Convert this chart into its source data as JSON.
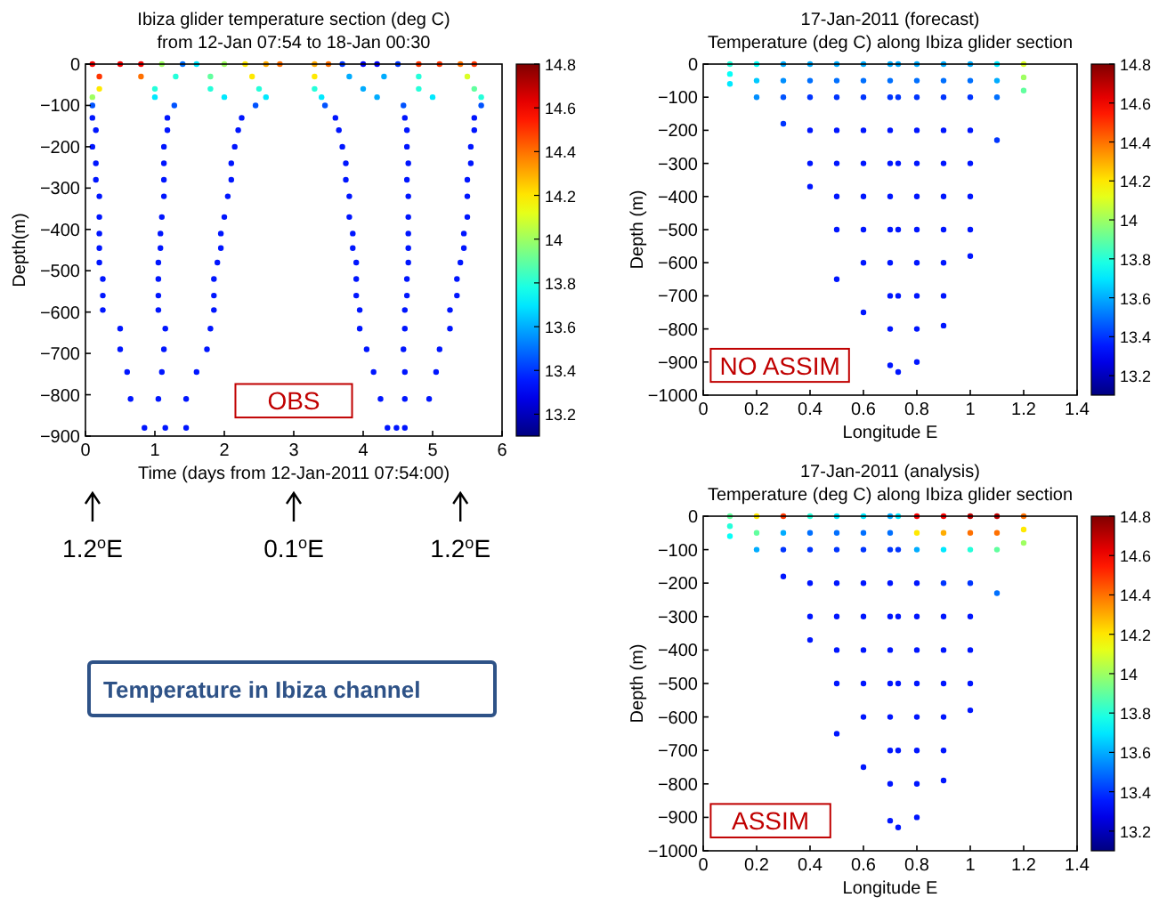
{
  "chart_data": [
    {
      "type": "scatter",
      "title": "Ibiza glider temperature section (deg C)",
      "subtitle": "from 12-Jan 07:54 to 18-Jan 00:30",
      "xlabel": "Time (days from 12-Jan-2011 07:54:00)",
      "ylabel": "Depth(m)",
      "xlim": [
        0,
        6
      ],
      "xticks": [
        0,
        1,
        2,
        3,
        4,
        5,
        6
      ],
      "ylim": [
        -900,
        0
      ],
      "yticks": [
        -900,
        -800,
        -700,
        -600,
        -500,
        -400,
        -300,
        -200,
        -100,
        0
      ],
      "clim": [
        13.1,
        14.8
      ],
      "cticks": [
        13.2,
        13.4,
        13.6,
        13.8,
        14,
        14.2,
        14.4,
        14.6,
        14.8
      ],
      "annotations": [
        "OBS",
        "1.2$^{o}$E",
        "0.1$^{o}$E",
        "1.2$^{o}$E",
        "Temperature in Ibiza channel"
      ],
      "series": [
        {
          "x": [
            0.1,
            0.5,
            0.8,
            1.1,
            1.4,
            1.6,
            2.0,
            2.3,
            2.6,
            2.8,
            3.3,
            3.5,
            3.7,
            4.0,
            4.2,
            4.5,
            4.8,
            5.1,
            5.4,
            5.6
          ],
          "values": [
            0,
            0,
            0,
            0,
            0,
            0,
            0,
            0,
            0,
            0,
            0,
            0,
            0,
            0,
            0,
            0,
            0,
            0,
            0,
            0
          ],
          "colors": [
            "#f80000",
            "#f80000",
            "#f80000",
            "#9eff61",
            "#0070ff",
            "#00e9ff",
            "#9eff61",
            "#ffe900",
            "#ffac00",
            "#ff7000",
            "#ffac00",
            "#ff7000",
            "#0035ff",
            "#0000f8",
            "#0000f8",
            "#0035ff",
            "#ff3500",
            "#ff3500",
            "#ff7000",
            "#ff3500"
          ]
        },
        {
          "x": [
            0.2,
            0.8,
            1.3,
            1.8,
            2.4,
            3.3,
            3.8,
            4.3,
            4.8,
            5.5
          ],
          "values": [
            -30,
            -30,
            -30,
            -30,
            -30,
            -30,
            -30,
            -30,
            -30,
            -30
          ],
          "colors": [
            "#ff3500",
            "#ff7000",
            "#25ffda",
            "#61ff9e",
            "#ffe900",
            "#ffe900",
            "#00acff",
            "#00acff",
            "#25ffda",
            "#daff25"
          ]
        },
        {
          "x": [
            0.2,
            1.0,
            1.8,
            2.5,
            3.3,
            4.0,
            4.8,
            5.6
          ],
          "values": [
            -60,
            -60,
            -60,
            -60,
            -60,
            -60,
            -60,
            -60
          ],
          "colors": [
            "#ffe900",
            "#25ffda",
            "#25ffda",
            "#25ffda",
            "#25ffda",
            "#00acff",
            "#25ffda",
            "#61ff9e"
          ]
        },
        {
          "x": [
            0.1,
            1.0,
            2.0,
            2.6,
            3.4,
            4.2,
            5.0,
            5.7
          ],
          "values": [
            -80,
            -80,
            -80,
            -80,
            -80,
            -80,
            -80,
            -80
          ],
          "colors": [
            "#9eff61",
            "#00e9ff",
            "#00e9ff",
            "#00e9ff",
            "#00e9ff",
            "#00acff",
            "#00e9ff",
            "#25ffda"
          ]
        },
        {
          "x": [
            0.1,
            1.28,
            2.45,
            3.45,
            4.58,
            5.7
          ],
          "values": [
            -100,
            -100,
            -100,
            -100,
            -100,
            -100
          ],
          "color": "#0053ff"
        },
        {
          "x": [
            0.1,
            1.18,
            2.25,
            3.6,
            4.6,
            5.6
          ],
          "values": [
            -130,
            -130,
            -130,
            -130,
            -130,
            -130
          ],
          "color": "#0016ff"
        },
        {
          "x": [
            0.15,
            1.18,
            2.2,
            3.65,
            4.63,
            5.6
          ],
          "values": [
            -160,
            -160,
            -160,
            -160,
            -160,
            -160
          ],
          "color": "#0016ff"
        },
        {
          "x": [
            0.1,
            1.13,
            2.15,
            3.7,
            4.63,
            5.55
          ],
          "values": [
            -200,
            -200,
            -200,
            -200,
            -200,
            -200
          ],
          "color": "#0016ff"
        },
        {
          "x": [
            0.15,
            1.13,
            2.1,
            3.75,
            4.65,
            5.55
          ],
          "values": [
            -240,
            -240,
            -240,
            -240,
            -240,
            -240
          ],
          "color": "#0016ff"
        },
        {
          "x": [
            0.15,
            1.13,
            2.1,
            3.75,
            4.63,
            5.5
          ],
          "values": [
            -280,
            -280,
            -280,
            -280,
            -280,
            -280
          ],
          "color": "#0016ff"
        },
        {
          "x": [
            0.2,
            1.13,
            2.05,
            3.8,
            4.65,
            5.5
          ],
          "values": [
            -320,
            -320,
            -320,
            -320,
            -320,
            -320
          ],
          "color": "#0016ff"
        },
        {
          "x": [
            0.2,
            1.1,
            2.0,
            3.8,
            4.65,
            5.5
          ],
          "values": [
            -370,
            -370,
            -370,
            -370,
            -370,
            -370
          ],
          "color": "#0016ff"
        },
        {
          "x": [
            0.2,
            1.08,
            1.95,
            3.85,
            4.65,
            5.45
          ],
          "values": [
            -410,
            -410,
            -410,
            -410,
            -410,
            -410
          ],
          "color": "#0016ff"
        },
        {
          "x": [
            0.2,
            1.08,
            1.95,
            3.85,
            4.65,
            5.45
          ],
          "values": [
            -445,
            -445,
            -445,
            -445,
            -445,
            -445
          ],
          "color": "#0016ff"
        },
        {
          "x": [
            0.2,
            1.05,
            1.9,
            3.9,
            4.65,
            5.4
          ],
          "values": [
            -480,
            -480,
            -480,
            -480,
            -480,
            -480
          ],
          "color": "#0016ff"
        },
        {
          "x": [
            0.25,
            1.05,
            1.85,
            3.9,
            4.63,
            5.35
          ],
          "values": [
            -520,
            -520,
            -520,
            -520,
            -520,
            -520
          ],
          "color": "#0016ff"
        },
        {
          "x": [
            0.25,
            1.05,
            1.85,
            3.9,
            4.63,
            5.35
          ],
          "values": [
            -560,
            -560,
            -560,
            -560,
            -560,
            -560
          ],
          "color": "#0016ff"
        },
        {
          "x": [
            0.25,
            1.05,
            1.85,
            3.95,
            4.6,
            5.25
          ],
          "values": [
            -595,
            -595,
            -595,
            -595,
            -595,
            -595
          ],
          "color": "#0016ff"
        },
        {
          "x": [
            0.5,
            1.15,
            1.8,
            3.95,
            4.6,
            5.25
          ],
          "values": [
            -640,
            -640,
            -640,
            -640,
            -640,
            -640
          ],
          "color": "#0016ff"
        },
        {
          "x": [
            0.5,
            1.13,
            1.75,
            4.05,
            4.58,
            5.1
          ],
          "values": [
            -690,
            -690,
            -690,
            -690,
            -690,
            -690
          ],
          "color": "#0016ff"
        },
        {
          "x": [
            0.6,
            1.1,
            1.6,
            4.15,
            4.6,
            5.05
          ],
          "values": [
            -745,
            -745,
            -745,
            -745,
            -745,
            -745
          ],
          "color": "#0016ff"
        },
        {
          "x": [
            0.65,
            1.05,
            1.45,
            4.25,
            4.6,
            4.95
          ],
          "values": [
            -810,
            -810,
            -810,
            -810,
            -810,
            -810
          ],
          "color": "#0016ff"
        },
        {
          "x": [
            0.85,
            1.15,
            1.45,
            4.35,
            4.48,
            4.6
          ],
          "values": [
            -880,
            -880,
            -880,
            -880,
            -880,
            -880
          ],
          "color": "#0016ff"
        }
      ]
    },
    {
      "type": "scatter",
      "title": "17-Jan-2011 (forecast)",
      "subtitle": "Temperature (deg C) along Ibiza glider section",
      "xlabel": "Longitude E",
      "ylabel": "Depth (m)",
      "xlim": [
        0,
        1.4
      ],
      "xticks": [
        0,
        0.2,
        0.4,
        0.6,
        0.8,
        1,
        1.2,
        1.4
      ],
      "ylim": [
        -1000,
        0
      ],
      "yticks": [
        -1000,
        -900,
        -800,
        -700,
        -600,
        -500,
        -400,
        -300,
        -200,
        -100,
        0
      ],
      "clim": [
        13.1,
        14.8
      ],
      "cticks": [
        13.2,
        13.4,
        13.6,
        13.8,
        14,
        14.2,
        14.4,
        14.6,
        14.8
      ],
      "annotations": [
        "NO ASSIM"
      ],
      "series": [
        {
          "x": [
            0.1,
            0.1,
            0.1
          ],
          "values": [
            0,
            -30,
            -60
          ],
          "colors": [
            "#25ffda",
            "#07fff8",
            "#00e9ff"
          ]
        },
        {
          "x": [
            0.2,
            0.2,
            0.2
          ],
          "values": [
            0,
            -50,
            -100
          ],
          "colors": [
            "#07fff8",
            "#00caff",
            "#008fff"
          ]
        },
        {
          "x": [
            0.3,
            0.3,
            0.3,
            0.3
          ],
          "values": [
            0,
            -50,
            -100,
            -180
          ],
          "colors": [
            "#00acff",
            "#008fff",
            "#0053ff",
            "#0035ff"
          ]
        },
        {
          "x": [
            0.4,
            0.4,
            0.4,
            0.4,
            0.4,
            0.4
          ],
          "values": [
            0,
            -50,
            -100,
            -200,
            -300,
            -370
          ],
          "colors": [
            "#00acff",
            "#0070ff",
            "#0035ff",
            "#0016ff",
            "#0016ff",
            "#0016ff"
          ]
        },
        {
          "x": [
            0.5,
            0.5,
            0.5,
            0.5,
            0.5,
            0.5,
            0.5,
            0.5
          ],
          "values": [
            0,
            -50,
            -100,
            -200,
            -300,
            -400,
            -500,
            -650
          ],
          "colors": [
            "#00acff",
            "#0070ff",
            "#0035ff",
            "#0016ff",
            "#0016ff",
            "#0016ff",
            "#0016ff",
            "#0016ff"
          ]
        },
        {
          "x": [
            0.6,
            0.6,
            0.6,
            0.6,
            0.6,
            0.6,
            0.6,
            0.6,
            0.6
          ],
          "values": [
            0,
            -50,
            -100,
            -200,
            -300,
            -400,
            -500,
            -600,
            -750
          ],
          "colors": [
            "#00acff",
            "#0070ff",
            "#0035ff",
            "#0016ff",
            "#0016ff",
            "#0016ff",
            "#0016ff",
            "#0016ff",
            "#0016ff"
          ]
        },
        {
          "x": [
            0.7,
            0.7,
            0.7,
            0.7,
            0.7,
            0.7,
            0.7,
            0.7,
            0.7,
            0.7,
            0.7
          ],
          "values": [
            0,
            -50,
            -100,
            -200,
            -300,
            -400,
            -500,
            -600,
            -700,
            -800,
            -910
          ],
          "colors": [
            "#00acff",
            "#0070ff",
            "#0035ff",
            "#0016ff",
            "#0016ff",
            "#0016ff",
            "#0016ff",
            "#0016ff",
            "#0016ff",
            "#0016ff",
            "#0016ff"
          ]
        },
        {
          "x": [
            0.73,
            0.73,
            0.73,
            0.73,
            0.73,
            0.73
          ],
          "values": [
            0,
            -100,
            -300,
            -500,
            -700,
            -930
          ],
          "colors": [
            "#00acff",
            "#0035ff",
            "#0016ff",
            "#0016ff",
            "#0016ff",
            "#0016ff"
          ]
        },
        {
          "x": [
            0.8,
            0.8,
            0.8,
            0.8,
            0.8,
            0.8,
            0.8,
            0.8,
            0.8,
            0.8,
            0.8
          ],
          "values": [
            0,
            -50,
            -100,
            -200,
            -300,
            -400,
            -500,
            -600,
            -700,
            -800,
            -900
          ],
          "colors": [
            "#00acff",
            "#0070ff",
            "#0035ff",
            "#0016ff",
            "#0016ff",
            "#0016ff",
            "#0016ff",
            "#0016ff",
            "#0016ff",
            "#0016ff",
            "#0016ff"
          ]
        },
        {
          "x": [
            0.9,
            0.9,
            0.9,
            0.9,
            0.9,
            0.9,
            0.9,
            0.9,
            0.9,
            0.9
          ],
          "values": [
            0,
            -50,
            -100,
            -200,
            -300,
            -400,
            -500,
            -600,
            -700,
            -790
          ],
          "colors": [
            "#00acff",
            "#0070ff",
            "#0035ff",
            "#0016ff",
            "#0016ff",
            "#0016ff",
            "#0016ff",
            "#0016ff",
            "#0016ff",
            "#0016ff"
          ]
        },
        {
          "x": [
            1,
            1,
            1,
            1,
            1,
            1,
            1,
            1
          ],
          "values": [
            0,
            -50,
            -100,
            -200,
            -300,
            -400,
            -500,
            -580
          ],
          "colors": [
            "#00acff",
            "#0070ff",
            "#0035ff",
            "#0016ff",
            "#0016ff",
            "#0016ff",
            "#0016ff",
            "#0016ff"
          ]
        },
        {
          "x": [
            1.1,
            1.1,
            1.1,
            1.1
          ],
          "values": [
            0,
            -50,
            -100,
            -230
          ],
          "colors": [
            "#00e9ff",
            "#00acff",
            "#0070ff",
            "#0035ff"
          ]
        },
        {
          "x": [
            1.2,
            1.2,
            1.2
          ],
          "values": [
            0,
            -40,
            -80
          ],
          "colors": [
            "#daff25",
            "#9eff61",
            "#61ff9e"
          ]
        }
      ]
    },
    {
      "type": "scatter",
      "title": "17-Jan-2011 (analysis)",
      "subtitle": "Temperature (deg C) along Ibiza glider section",
      "xlabel": "Longitude E",
      "ylabel": "Depth (m)",
      "xlim": [
        0,
        1.4
      ],
      "xticks": [
        0,
        0.2,
        0.4,
        0.6,
        0.8,
        1,
        1.2,
        1.4
      ],
      "ylim": [
        -1000,
        0
      ],
      "yticks": [
        -1000,
        -900,
        -800,
        -700,
        -600,
        -500,
        -400,
        -300,
        -200,
        -100,
        0
      ],
      "clim": [
        13.1,
        14.8
      ],
      "cticks": [
        13.2,
        13.4,
        13.6,
        13.8,
        14,
        14.2,
        14.4,
        14.6,
        14.8
      ],
      "annotations": [
        "ASSIM"
      ],
      "series": [
        {
          "x": [
            0.1,
            0.1,
            0.1
          ],
          "values": [
            0,
            -30,
            -60
          ],
          "colors": [
            "#61ff9e",
            "#25ffda",
            "#07fff8"
          ]
        },
        {
          "x": [
            0.2,
            0.2,
            0.2
          ],
          "values": [
            0,
            -50,
            -100
          ],
          "colors": [
            "#ffe900",
            "#61ff9e",
            "#00acff"
          ]
        },
        {
          "x": [
            0.3,
            0.3,
            0.3,
            0.3
          ],
          "values": [
            0,
            -50,
            -100,
            -180
          ],
          "colors": [
            "#ff3500",
            "#00acff",
            "#0035ff",
            "#0016ff"
          ]
        },
        {
          "x": [
            0.4,
            0.4,
            0.4,
            0.4,
            0.4,
            0.4
          ],
          "values": [
            0,
            -50,
            -100,
            -200,
            -300,
            -370
          ],
          "colors": [
            "#25ffda",
            "#0070ff",
            "#0035ff",
            "#0016ff",
            "#0016ff",
            "#0016ff"
          ]
        },
        {
          "x": [
            0.5,
            0.5,
            0.5,
            0.5,
            0.5,
            0.5,
            0.5,
            0.5
          ],
          "values": [
            0,
            -50,
            -100,
            -200,
            -300,
            -400,
            -500,
            -650
          ],
          "colors": [
            "#00e9ff",
            "#0070ff",
            "#0035ff",
            "#0016ff",
            "#0016ff",
            "#0016ff",
            "#0016ff",
            "#0016ff"
          ]
        },
        {
          "x": [
            0.6,
            0.6,
            0.6,
            0.6,
            0.6,
            0.6,
            0.6,
            0.6,
            0.6
          ],
          "values": [
            0,
            -50,
            -100,
            -200,
            -300,
            -400,
            -500,
            -600,
            -750
          ],
          "colors": [
            "#00e9ff",
            "#0070ff",
            "#0035ff",
            "#0016ff",
            "#0016ff",
            "#0016ff",
            "#0016ff",
            "#0016ff",
            "#0016ff"
          ]
        },
        {
          "x": [
            0.7,
            0.7,
            0.7,
            0.7,
            0.7,
            0.7,
            0.7,
            0.7,
            0.7,
            0.7,
            0.7
          ],
          "values": [
            0,
            -50,
            -100,
            -200,
            -300,
            -400,
            -500,
            -600,
            -700,
            -800,
            -910
          ],
          "colors": [
            "#00acff",
            "#0070ff",
            "#0035ff",
            "#0016ff",
            "#0016ff",
            "#0016ff",
            "#0016ff",
            "#0016ff",
            "#0016ff",
            "#0016ff",
            "#0016ff"
          ]
        },
        {
          "x": [
            0.73,
            0.73,
            0.73,
            0.73,
            0.73,
            0.73
          ],
          "values": [
            0,
            -100,
            -300,
            -500,
            -700,
            -930
          ],
          "colors": [
            "#00e9ff",
            "#0035ff",
            "#0016ff",
            "#0016ff",
            "#0016ff",
            "#0016ff"
          ]
        },
        {
          "x": [
            0.8,
            0.8,
            0.8,
            0.8,
            0.8,
            0.8,
            0.8,
            0.8,
            0.8,
            0.8,
            0.8
          ],
          "values": [
            0,
            -50,
            -100,
            -200,
            -300,
            -400,
            -500,
            -600,
            -700,
            -800,
            -900
          ],
          "colors": [
            "#f80000",
            "#ffe900",
            "#00acff",
            "#0016ff",
            "#0016ff",
            "#0016ff",
            "#0016ff",
            "#0016ff",
            "#0016ff",
            "#0016ff",
            "#0016ff"
          ]
        },
        {
          "x": [
            0.9,
            0.9,
            0.9,
            0.9,
            0.9,
            0.9,
            0.9,
            0.9,
            0.9,
            0.9
          ],
          "values": [
            0,
            -50,
            -100,
            -200,
            -300,
            -400,
            -500,
            -600,
            -700,
            -790
          ],
          "colors": [
            "#f80000",
            "#ffac00",
            "#00e9ff",
            "#0035ff",
            "#0016ff",
            "#0016ff",
            "#0016ff",
            "#0016ff",
            "#0016ff",
            "#0016ff"
          ]
        },
        {
          "x": [
            1,
            1,
            1,
            1,
            1,
            1,
            1,
            1
          ],
          "values": [
            0,
            -50,
            -100,
            -200,
            -300,
            -400,
            -500,
            -580
          ],
          "colors": [
            "#bb0000",
            "#ff7000",
            "#25ffda",
            "#0035ff",
            "#0016ff",
            "#0016ff",
            "#0016ff",
            "#0016ff"
          ]
        },
        {
          "x": [
            1.1,
            1.1,
            1.1,
            1.1
          ],
          "values": [
            0,
            -50,
            -100,
            -230
          ],
          "colors": [
            "#bb0000",
            "#ff7000",
            "#61ff9e",
            "#0070ff"
          ]
        },
        {
          "x": [
            1.2,
            1.2,
            1.2
          ],
          "values": [
            0,
            -40,
            -80
          ],
          "colors": [
            "#ff7000",
            "#ffe900",
            "#9eff61"
          ]
        }
      ]
    }
  ]
}
